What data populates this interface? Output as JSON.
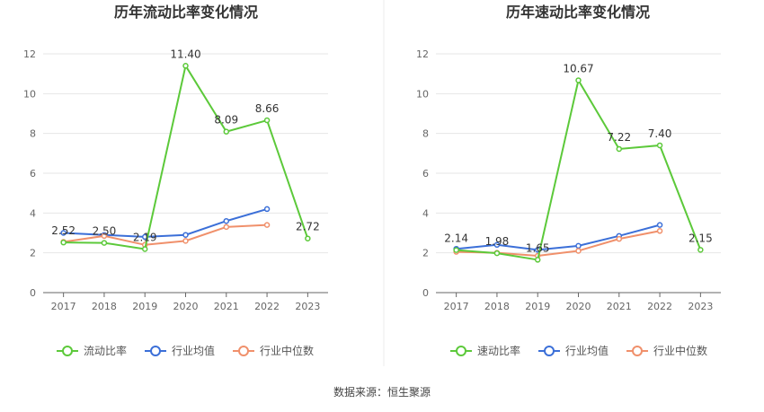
{
  "source_text": "数据来源：恒生聚源",
  "chart_data": [
    {
      "type": "line",
      "title": "历年流动比率变化情况",
      "categories": [
        "2017",
        "2018",
        "2019",
        "2020",
        "2021",
        "2022",
        "2023"
      ],
      "ylim": [
        0,
        12
      ],
      "yticks": [
        0,
        2,
        4,
        6,
        8,
        10,
        12
      ],
      "grid": true,
      "legend_position": "bottom",
      "series": [
        {
          "name": "流动比率",
          "color": "#5cc93a",
          "values": [
            2.52,
            2.5,
            2.19,
            11.4,
            8.09,
            8.66,
            2.72
          ],
          "labels": [
            "2.52",
            "2.50",
            "2.19",
            "11.40",
            "8.09",
            "8.66",
            "2.72"
          ]
        },
        {
          "name": "行业均值",
          "color": "#3b6fd8",
          "values": [
            3.0,
            2.9,
            2.8,
            2.9,
            3.6,
            4.2,
            null
          ]
        },
        {
          "name": "行业中位数",
          "color": "#f0906b",
          "values": [
            2.55,
            2.85,
            2.4,
            2.6,
            3.3,
            3.4,
            null
          ]
        }
      ]
    },
    {
      "type": "line",
      "title": "历年速动比率变化情况",
      "categories": [
        "2017",
        "2018",
        "2019",
        "2020",
        "2021",
        "2022",
        "2023"
      ],
      "ylim": [
        0,
        12
      ],
      "yticks": [
        0,
        2,
        4,
        6,
        8,
        10,
        12
      ],
      "grid": true,
      "legend_position": "bottom",
      "series": [
        {
          "name": "速动比率",
          "color": "#5cc93a",
          "values": [
            2.14,
            1.98,
            1.65,
            10.67,
            7.22,
            7.4,
            2.15
          ],
          "labels": [
            "2.14",
            "1.98",
            "1.65",
            "10.67",
            "7.22",
            "7.40",
            "2.15"
          ]
        },
        {
          "name": "行业均值",
          "color": "#3b6fd8",
          "values": [
            2.2,
            2.4,
            2.15,
            2.35,
            2.85,
            3.4,
            null
          ]
        },
        {
          "name": "行业中位数",
          "color": "#f0906b",
          "values": [
            2.05,
            2.0,
            1.85,
            2.1,
            2.7,
            3.1,
            null
          ]
        }
      ]
    }
  ]
}
